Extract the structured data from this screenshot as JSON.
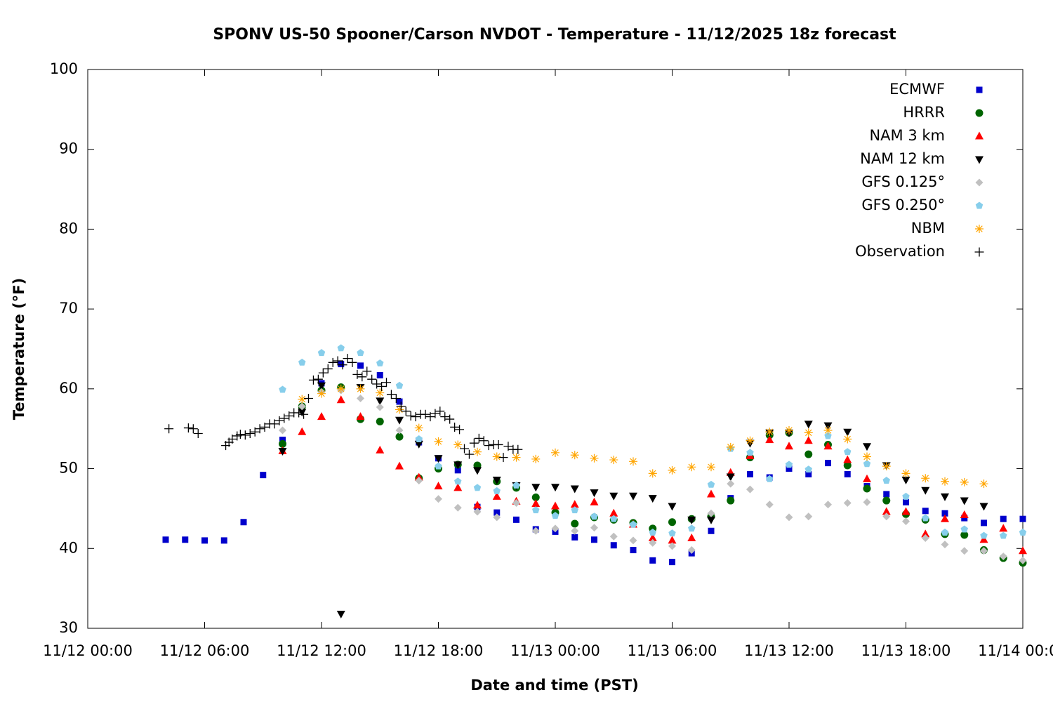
{
  "chart_data": {
    "type": "scatter",
    "title": "SPONV US-50 Spooner/Carson NVDOT - Temperature - 11/12/2025 18z forecast",
    "x_label": "Date and time (PST)",
    "y_label": "Temperature (°F)",
    "xlim": [
      "11/12 00:00",
      "11/14 00:00"
    ],
    "xticks": [
      "11/12 00:00",
      "11/12 06:00",
      "11/12 12:00",
      "11/12 18:00",
      "11/13 00:00",
      "11/13 06:00",
      "11/13 12:00",
      "11/13 18:00",
      "11/14 00:00"
    ],
    "ylim": [
      30,
      100
    ],
    "yticks": [
      30,
      40,
      50,
      60,
      70,
      80,
      90,
      100
    ],
    "legend_position": "top-right",
    "x": [
      "11/12 04:00",
      "11/12 05:00",
      "11/12 06:00",
      "11/12 07:00",
      "11/12 08:00",
      "11/12 09:00",
      "11/12 10:00",
      "11/12 11:00",
      "11/12 12:00",
      "11/12 13:00",
      "11/12 14:00",
      "11/12 15:00",
      "11/12 16:00",
      "11/12 17:00",
      "11/12 18:00",
      "11/12 19:00",
      "11/12 20:00",
      "11/12 21:00",
      "11/12 22:00",
      "11/12 23:00",
      "11/13 00:00",
      "11/13 01:00",
      "11/13 02:00",
      "11/13 03:00",
      "11/13 04:00",
      "11/13 05:00",
      "11/13 06:00",
      "11/13 07:00",
      "11/13 08:00",
      "11/13 09:00",
      "11/13 10:00",
      "11/13 11:00",
      "11/13 12:00",
      "11/13 13:00",
      "11/13 14:00",
      "11/13 15:00",
      "11/13 16:00",
      "11/13 17:00",
      "11/13 18:00",
      "11/13 19:00",
      "11/13 20:00",
      "11/13 21:00",
      "11/13 22:00",
      "11/13 23:00",
      "11/14 00:00"
    ],
    "series": [
      {
        "name": "ECMWF",
        "color": "#0000cc",
        "marker": "square",
        "values": [
          41.1,
          41.1,
          41.0,
          41.0,
          43.3,
          49.2,
          53.6,
          57.6,
          60.7,
          63.1,
          62.9,
          61.7,
          58.4,
          53.3,
          51.3,
          49.8,
          45.2,
          44.5,
          43.6,
          42.4,
          42.1,
          41.4,
          41.1,
          40.4,
          39.8,
          38.5,
          38.3,
          39.4,
          42.2,
          46.3,
          49.3,
          48.9,
          50.0,
          49.3,
          50.7,
          49.3,
          47.8,
          46.8,
          45.8,
          44.7,
          44.4,
          43.8,
          43.2,
          43.7,
          43.7
        ]
      },
      {
        "name": "HRRR",
        "color": "#006400",
        "marker": "circle",
        "values": [
          null,
          null,
          null,
          null,
          null,
          null,
          53.1,
          57.8,
          59.8,
          60.2,
          56.2,
          55.9,
          54.0,
          48.8,
          50.0,
          50.5,
          50.4,
          48.4,
          47.6,
          46.4,
          44.5,
          43.1,
          43.9,
          43.6,
          43.2,
          42.5,
          43.3,
          43.7,
          44.0,
          46.0,
          51.4,
          54.2,
          54.5,
          51.8,
          53.0,
          50.4,
          47.5,
          46.0,
          44.3,
          43.6,
          41.8,
          41.7,
          39.8,
          38.8,
          38.2
        ]
      },
      {
        "name": "NAM 3 km",
        "color": "#ff0000",
        "marker": "triangle-up",
        "values": [
          null,
          null,
          null,
          null,
          null,
          null,
          52.2,
          54.6,
          56.5,
          58.6,
          56.5,
          52.3,
          50.3,
          48.9,
          47.8,
          47.6,
          45.4,
          46.5,
          45.9,
          45.6,
          45.3,
          45.5,
          45.8,
          44.4,
          43.0,
          41.3,
          41.0,
          41.3,
          46.8,
          49.5,
          51.6,
          53.6,
          52.8,
          53.5,
          52.8,
          51.1,
          48.7,
          44.6,
          44.6,
          41.8,
          43.7,
          44.2,
          41.1,
          42.5,
          39.7
        ]
      },
      {
        "name": "NAM 12 km",
        "color": "#000000",
        "marker": "triangle-down",
        "values": [
          null,
          null,
          null,
          null,
          null,
          null,
          52.2,
          57.1,
          60.4,
          31.8,
          60.2,
          58.5,
          56.1,
          53.1,
          51.3,
          50.5,
          49.8,
          48.6,
          47.9,
          47.7,
          47.7,
          47.5,
          47.0,
          46.6,
          46.6,
          46.3,
          45.3,
          43.6,
          43.6,
          49.0,
          53.2,
          54.5,
          54.5,
          55.6,
          55.4,
          54.6,
          52.8,
          50.4,
          48.6,
          47.3,
          46.5,
          46.0,
          45.3,
          null,
          null
        ]
      },
      {
        "name": "GFS 0.125°",
        "color": "#c0c0c0",
        "marker": "diamond",
        "values": [
          null,
          null,
          null,
          null,
          null,
          null,
          54.8,
          57.8,
          59.6,
          59.8,
          58.8,
          57.7,
          54.8,
          48.5,
          46.2,
          45.1,
          44.6,
          43.9,
          45.7,
          42.2,
          42.5,
          42.2,
          42.6,
          41.5,
          41.0,
          40.7,
          40.3,
          39.8,
          44.4,
          48.1,
          47.4,
          45.5,
          43.9,
          44.0,
          45.5,
          45.7,
          45.8,
          44.0,
          43.4,
          41.3,
          40.5,
          39.7,
          39.7,
          39.0,
          38.5
        ]
      },
      {
        "name": "GFS 0.250°",
        "color": "#87ceeb",
        "marker": "pentagon",
        "values": [
          null,
          null,
          null,
          null,
          null,
          null,
          59.9,
          63.3,
          64.5,
          65.1,
          64.5,
          63.2,
          60.4,
          53.7,
          50.3,
          48.4,
          47.6,
          47.2,
          47.9,
          44.8,
          44.1,
          44.8,
          44.0,
          43.7,
          43.0,
          42.0,
          41.9,
          42.5,
          48.0,
          52.5,
          52.0,
          48.7,
          50.5,
          49.9,
          54.1,
          52.1,
          50.6,
          48.5,
          46.5,
          43.8,
          42.0,
          42.4,
          41.6,
          41.6,
          42.0
        ]
      },
      {
        "name": "NBM",
        "color": "#ffa500",
        "marker": "asterisk",
        "values": [
          null,
          null,
          null,
          null,
          null,
          null,
          null,
          58.7,
          59.4,
          60.0,
          60.0,
          59.5,
          57.4,
          55.1,
          53.4,
          53.0,
          52.1,
          51.5,
          51.4,
          51.2,
          52.0,
          51.7,
          51.3,
          51.1,
          50.9,
          49.4,
          49.8,
          50.2,
          50.2,
          52.7,
          53.5,
          54.6,
          54.8,
          54.5,
          54.8,
          53.7,
          51.5,
          50.3,
          49.4,
          48.8,
          48.4,
          48.3,
          48.1,
          null,
          null
        ]
      },
      {
        "name": "Observation",
        "color": "#000000",
        "marker": "plus",
        "x": [
          "11/12 04:10",
          "11/12 05:10",
          "11/12 05:25",
          "11/12 05:40",
          "11/12 07:05",
          "11/12 07:15",
          "11/12 07:25",
          "11/12 07:40",
          "11/12 07:50",
          "11/12 08:05",
          "11/12 08:20",
          "11/12 08:35",
          "11/12 08:50",
          "11/12 09:05",
          "11/12 09:20",
          "11/12 09:35",
          "11/12 09:50",
          "11/12 10:05",
          "11/12 10:20",
          "11/12 10:35",
          "11/12 10:50",
          "11/12 11:05",
          "11/12 11:20",
          "11/12 11:35",
          "11/12 11:50",
          "11/12 12:05",
          "11/12 12:20",
          "11/12 12:35",
          "11/12 12:50",
          "11/12 13:05",
          "11/12 13:20",
          "11/12 13:35",
          "11/12 13:50",
          "11/12 14:05",
          "11/12 14:20",
          "11/12 14:35",
          "11/12 14:50",
          "11/12 15:05",
          "11/12 15:20",
          "11/12 15:35",
          "11/12 15:50",
          "11/12 16:05",
          "11/12 16:20",
          "11/12 16:35",
          "11/12 16:50",
          "11/12 17:05",
          "11/12 17:20",
          "11/12 17:35",
          "11/12 17:50",
          "11/12 18:05",
          "11/12 18:20",
          "11/12 18:35",
          "11/12 18:50",
          "11/12 19:05",
          "11/12 19:20",
          "11/12 19:35",
          "11/12 19:50",
          "11/12 20:05",
          "11/12 20:20",
          "11/12 20:35",
          "11/12 20:50",
          "11/12 21:05",
          "11/12 21:20",
          "11/12 21:35",
          "11/12 21:50",
          "11/12 22:05"
        ],
        "values": [
          55.0,
          55.1,
          55.0,
          54.4,
          52.9,
          53.3,
          53.7,
          54.1,
          54.3,
          54.2,
          54.4,
          54.6,
          55.0,
          55.2,
          55.6,
          55.6,
          56.0,
          56.3,
          56.6,
          57.0,
          57.0,
          56.8,
          58.8,
          61.1,
          61.2,
          62.0,
          62.5,
          63.3,
          63.5,
          63.0,
          63.8,
          63.3,
          61.8,
          61.5,
          62.2,
          61.2,
          60.6,
          60.3,
          60.8,
          59.3,
          58.8,
          57.8,
          57.2,
          56.6,
          56.5,
          56.8,
          56.8,
          56.5,
          56.9,
          57.2,
          56.5,
          56.2,
          55.2,
          54.9,
          52.5,
          51.8,
          53.2,
          53.8,
          53.5,
          52.9,
          53.0,
          53.0,
          51.4,
          52.8,
          52.4,
          52.4
        ]
      }
    ]
  }
}
